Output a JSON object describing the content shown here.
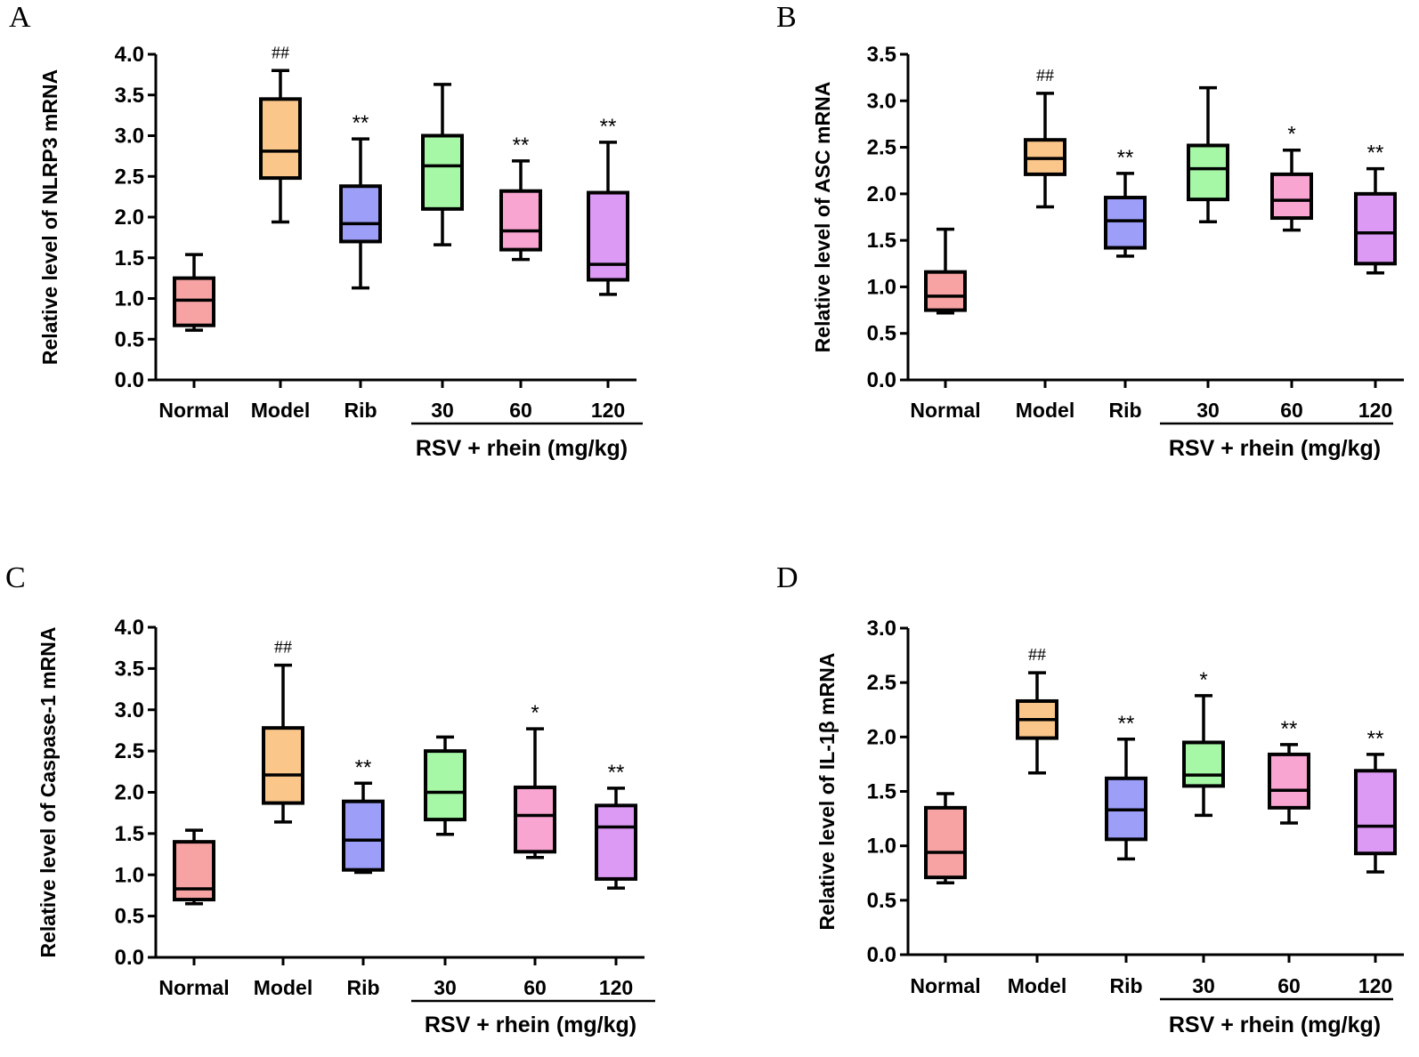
{
  "figure": {
    "colors": [
      "#f8a3a3",
      "#fbc68a",
      "#9d9ef8",
      "#a6f8a6",
      "#f9a5d1",
      "#dd9af5"
    ],
    "stroke_color": "#000000"
  },
  "chart_data": [
    {
      "panel": "A",
      "type": "boxplot",
      "ylabel": "Relative level of NLRP3 mRNA",
      "ylim": [
        0,
        4.0
      ],
      "yticks": [
        "0.0",
        "0.5",
        "1.0",
        "1.5",
        "2.0",
        "2.5",
        "3.0",
        "3.5",
        "4.0"
      ],
      "categories": [
        "Normal",
        "Model",
        "Rib",
        "30",
        "60",
        "120"
      ],
      "group_label": "RSV + rhein (mg/kg)",
      "series": [
        {
          "name": "Normal",
          "min": 0.61,
          "q1": 0.67,
          "median": 0.98,
          "q3": 1.25,
          "max": 1.54,
          "sig": ""
        },
        {
          "name": "Model",
          "min": 1.94,
          "q1": 2.48,
          "median": 2.81,
          "q3": 3.45,
          "max": 3.8,
          "sig": "##"
        },
        {
          "name": "Rib",
          "min": 1.13,
          "q1": 1.7,
          "median": 1.92,
          "q3": 2.38,
          "max": 2.96,
          "sig": "**"
        },
        {
          "name": "30",
          "min": 1.66,
          "q1": 2.1,
          "median": 2.63,
          "q3": 3.0,
          "max": 3.63,
          "sig": ""
        },
        {
          "name": "60",
          "min": 1.48,
          "q1": 1.6,
          "median": 1.83,
          "q3": 2.32,
          "max": 2.69,
          "sig": "**"
        },
        {
          "name": "120",
          "min": 1.05,
          "q1": 1.23,
          "median": 1.42,
          "q3": 2.3,
          "max": 2.92,
          "sig": "**"
        }
      ]
    },
    {
      "panel": "B",
      "type": "boxplot",
      "ylabel": "Relative level of ASC mRNA",
      "ylim": [
        0,
        3.5
      ],
      "yticks": [
        "0.0",
        "0.5",
        "1.0",
        "1.5",
        "2.0",
        "2.5",
        "3.0",
        "3.5"
      ],
      "categories": [
        "Normal",
        "Model",
        "Rib",
        "30",
        "60",
        "120"
      ],
      "group_label": "RSV + rhein (mg/kg)",
      "series": [
        {
          "name": "Normal",
          "min": 0.72,
          "q1": 0.75,
          "median": 0.9,
          "q3": 1.16,
          "max": 1.62,
          "sig": ""
        },
        {
          "name": "Model",
          "min": 1.86,
          "q1": 2.21,
          "median": 2.38,
          "q3": 2.58,
          "max": 3.08,
          "sig": "##"
        },
        {
          "name": "Rib",
          "min": 1.33,
          "q1": 1.42,
          "median": 1.71,
          "q3": 1.96,
          "max": 2.22,
          "sig": "**"
        },
        {
          "name": "30",
          "min": 1.7,
          "q1": 1.94,
          "median": 2.27,
          "q3": 2.52,
          "max": 3.14,
          "sig": ""
        },
        {
          "name": "60",
          "min": 1.61,
          "q1": 1.74,
          "median": 1.93,
          "q3": 2.21,
          "max": 2.47,
          "sig": "*"
        },
        {
          "name": "120",
          "min": 1.15,
          "q1": 1.25,
          "median": 1.58,
          "q3": 2.0,
          "max": 2.27,
          "sig": "**"
        }
      ]
    },
    {
      "panel": "C",
      "type": "boxplot",
      "ylabel": "Relative level of Caspase-1 mRNA",
      "ylim": [
        0,
        4.0
      ],
      "yticks": [
        "0.0",
        "0.5",
        "1.0",
        "1.5",
        "2.0",
        "2.5",
        "3.0",
        "3.5",
        "4.0"
      ],
      "categories": [
        "Normal",
        "Model",
        "Rib",
        "30",
        "60",
        "120"
      ],
      "group_label": "RSV + rhein (mg/kg)",
      "series": [
        {
          "name": "Normal",
          "min": 0.65,
          "q1": 0.7,
          "median": 0.83,
          "q3": 1.4,
          "max": 1.54,
          "sig": ""
        },
        {
          "name": "Model",
          "min": 1.64,
          "q1": 1.87,
          "median": 2.21,
          "q3": 2.78,
          "max": 3.54,
          "sig": "##"
        },
        {
          "name": "Rib",
          "min": 1.03,
          "q1": 1.06,
          "median": 1.42,
          "q3": 1.89,
          "max": 2.11,
          "sig": "**"
        },
        {
          "name": "30",
          "min": 1.49,
          "q1": 1.67,
          "median": 2.0,
          "q3": 2.5,
          "max": 2.67,
          "sig": ""
        },
        {
          "name": "60",
          "min": 1.21,
          "q1": 1.28,
          "median": 1.72,
          "q3": 2.06,
          "max": 2.77,
          "sig": "*"
        },
        {
          "name": "120",
          "min": 0.84,
          "q1": 0.95,
          "median": 1.58,
          "q3": 1.84,
          "max": 2.05,
          "sig": "**"
        }
      ]
    },
    {
      "panel": "D",
      "type": "boxplot",
      "ylabel": "Relative level of IL-1β mRNA",
      "ylim": [
        0,
        3.0
      ],
      "yticks": [
        "0.0",
        "0.5",
        "1.0",
        "1.5",
        "2.0",
        "2.5",
        "3.0"
      ],
      "categories": [
        "Normal",
        "Model",
        "Rib",
        "30",
        "60",
        "120"
      ],
      "group_label": "RSV + rhein (mg/kg)",
      "series": [
        {
          "name": "Normal",
          "min": 0.66,
          "q1": 0.71,
          "median": 0.94,
          "q3": 1.35,
          "max": 1.48,
          "sig": ""
        },
        {
          "name": "Model",
          "min": 1.67,
          "q1": 1.99,
          "median": 2.16,
          "q3": 2.33,
          "max": 2.59,
          "sig": "##"
        },
        {
          "name": "Rib",
          "min": 0.88,
          "q1": 1.06,
          "median": 1.33,
          "q3": 1.62,
          "max": 1.98,
          "sig": "**"
        },
        {
          "name": "30",
          "min": 1.28,
          "q1": 1.55,
          "median": 1.65,
          "q3": 1.95,
          "max": 2.38,
          "sig": "*"
        },
        {
          "name": "60",
          "min": 1.21,
          "q1": 1.35,
          "median": 1.51,
          "q3": 1.84,
          "max": 1.93,
          "sig": "**"
        },
        {
          "name": "120",
          "min": 0.76,
          "q1": 0.93,
          "median": 1.18,
          "q3": 1.69,
          "max": 1.84,
          "sig": "**"
        }
      ]
    }
  ]
}
